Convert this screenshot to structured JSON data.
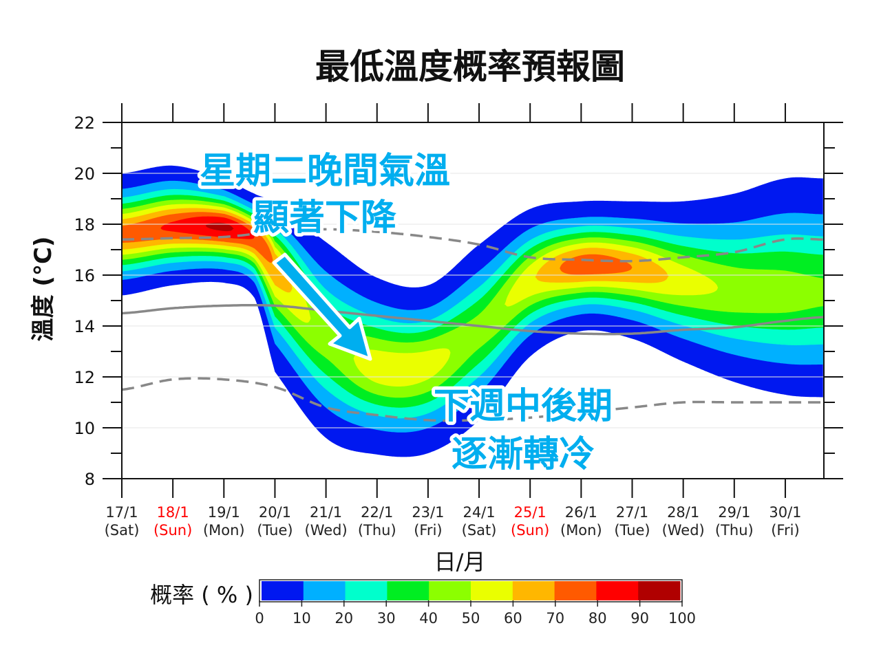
{
  "chart_data": {
    "type": "heatmap",
    "title": "最低溫度概率預報圖",
    "xlabel": "日/月",
    "ylabel": "溫度 (°C)",
    "ylim": [
      8,
      22
    ],
    "yticks": [
      8,
      10,
      12,
      14,
      16,
      18,
      20,
      22
    ],
    "xlim": [
      17,
      30.75
    ],
    "xticks": [
      {
        "day": 17,
        "date": "17/1",
        "weekday": "(Sat)",
        "weekend": false
      },
      {
        "day": 18,
        "date": "18/1",
        "weekday": "(Sun)",
        "weekend": true
      },
      {
        "day": 19,
        "date": "19/1",
        "weekday": "(Mon)",
        "weekend": false
      },
      {
        "day": 20,
        "date": "20/1",
        "weekday": "(Tue)",
        "weekend": false
      },
      {
        "day": 21,
        "date": "21/1",
        "weekday": "(Wed)",
        "weekend": false
      },
      {
        "day": 22,
        "date": "22/1",
        "weekday": "(Thu)",
        "weekend": false
      },
      {
        "day": 23,
        "date": "23/1",
        "weekday": "(Fri)",
        "weekend": false
      },
      {
        "day": 24,
        "date": "24/1",
        "weekday": "(Sat)",
        "weekend": false
      },
      {
        "day": 25,
        "date": "25/1",
        "weekday": "(Sun)",
        "weekend": true
      },
      {
        "day": 26,
        "date": "26/1",
        "weekday": "(Mon)",
        "weekend": false
      },
      {
        "day": 27,
        "date": "27/1",
        "weekday": "(Tue)",
        "weekend": false
      },
      {
        "day": 28,
        "date": "28/1",
        "weekday": "(Wed)",
        "weekend": false
      },
      {
        "day": 29,
        "date": "29/1",
        "weekday": "(Thu)",
        "weekend": false
      },
      {
        "day": 30,
        "date": "30/1",
        "weekday": "(Fri)",
        "weekend": false
      }
    ],
    "weekend_color": "#ff0000",
    "probability_distribution": {
      "columns": [
        "day",
        "lower_edge_C",
        "upper_edge_C",
        "most_likely_C",
        "peak_probability_pct"
      ],
      "rows": [
        [
          17,
          15.2,
          20.0,
          17.6,
          75
        ],
        [
          18,
          15.6,
          20.3,
          17.9,
          82
        ],
        [
          19,
          15.7,
          19.8,
          17.9,
          92
        ],
        [
          19.6,
          15.1,
          19.2,
          17.5,
          80
        ],
        [
          20,
          12.2,
          18.8,
          16.4,
          68
        ],
        [
          21,
          9.6,
          17.3,
          13.5,
          45
        ],
        [
          22,
          8.95,
          15.9,
          12.4,
          56
        ],
        [
          23,
          9.0,
          15.6,
          12.5,
          55
        ],
        [
          24,
          10.3,
          17.2,
          13.8,
          45
        ],
        [
          25,
          12.8,
          18.6,
          15.8,
          58
        ],
        [
          26,
          13.8,
          18.9,
          16.4,
          76
        ],
        [
          27,
          13.5,
          18.9,
          16.3,
          70
        ],
        [
          28,
          12.6,
          18.9,
          15.8,
          56
        ],
        [
          29,
          11.8,
          19.2,
          15.4,
          48
        ],
        [
          30,
          11.3,
          19.8,
          15.3,
          45
        ],
        [
          30.75,
          11.2,
          19.8,
          15.3,
          42
        ]
      ]
    },
    "lines": [
      {
        "style": "solid",
        "color": "#888888",
        "x": [
          17,
          18,
          19,
          20,
          21,
          22,
          23,
          24,
          25,
          26,
          27,
          28,
          29,
          30,
          30.75
        ],
        "y": [
          14.5,
          14.7,
          14.8,
          14.8,
          14.6,
          14.4,
          14.2,
          14.0,
          13.8,
          13.7,
          13.7,
          13.85,
          13.95,
          14.2,
          14.35
        ]
      },
      {
        "style": "dashed",
        "color": "#888888",
        "x": [
          17,
          18,
          19,
          20,
          21,
          22,
          23,
          24,
          25,
          26,
          27,
          28,
          29,
          30,
          30.75
        ],
        "y": [
          17.4,
          17.45,
          17.5,
          17.7,
          17.8,
          17.7,
          17.5,
          17.2,
          16.7,
          16.6,
          16.55,
          16.7,
          16.9,
          17.4,
          17.4
        ]
      },
      {
        "style": "dashed",
        "color": "#888888",
        "x": [
          17,
          18,
          19,
          20,
          21,
          22,
          23,
          24,
          25,
          26,
          27,
          28,
          29,
          30,
          30.75
        ],
        "y": [
          11.5,
          11.9,
          11.9,
          11.6,
          10.8,
          10.5,
          10.3,
          10.3,
          10.4,
          10.6,
          10.8,
          11.0,
          11.0,
          11.0,
          11.0
        ]
      }
    ],
    "colorbar": {
      "label": "概率 ( % )",
      "ticks": [
        "0",
        "10",
        "20",
        "30",
        "40",
        "50",
        "60",
        "70",
        "80",
        "90",
        "100"
      ],
      "colors": [
        "#0018f0",
        "#00b0ff",
        "#00ffcc",
        "#00ee22",
        "#8cff00",
        "#eaff00",
        "#ffb700",
        "#ff5a00",
        "#ff0000",
        "#b00000"
      ]
    },
    "annotations": [
      {
        "lines": [
          "星期二晚間氣溫",
          "顯著下降"
        ],
        "color": "#00aeef"
      },
      {
        "lines": [
          "下週中後期",
          "逐漸轉冷"
        ],
        "color": "#00aeef"
      }
    ]
  }
}
